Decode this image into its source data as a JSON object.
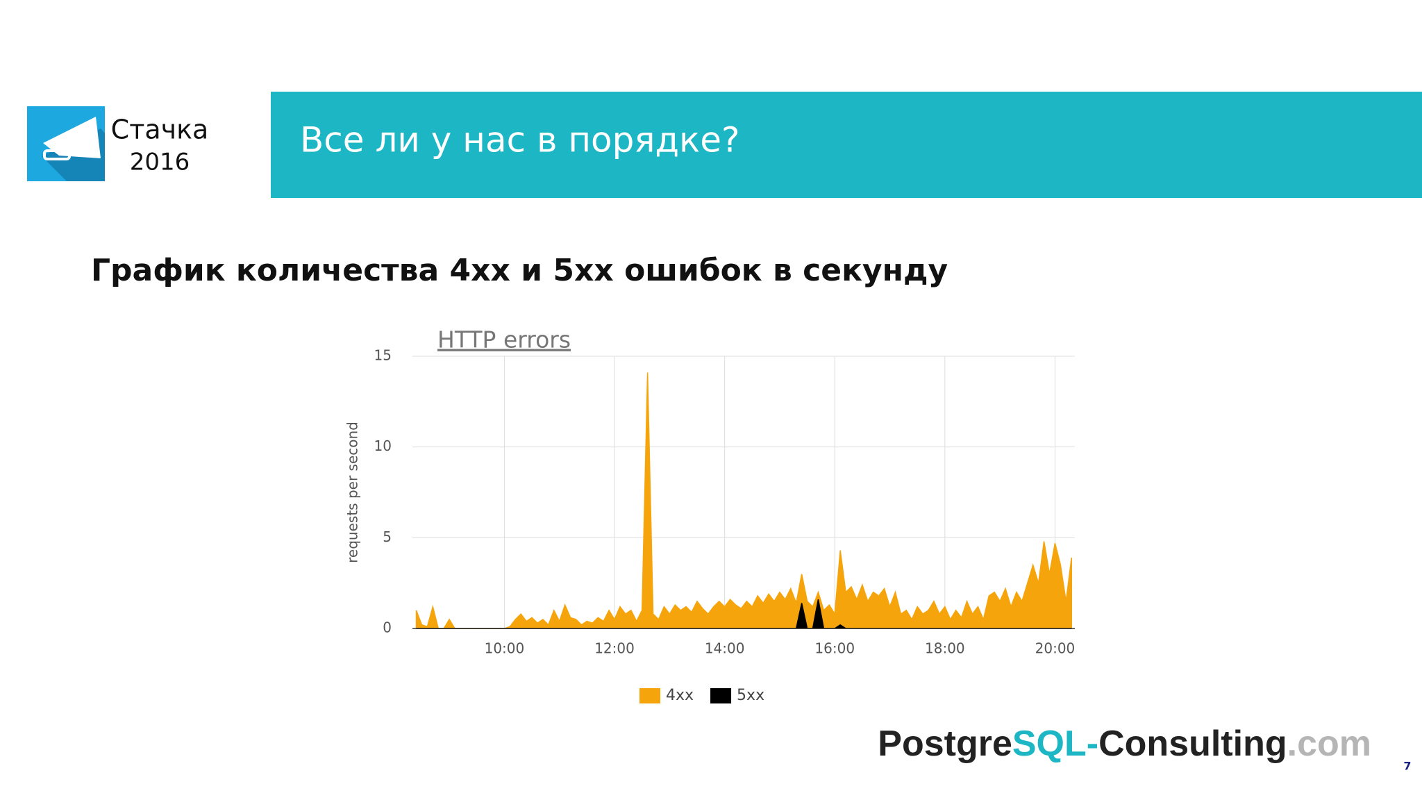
{
  "header": {
    "brand": "Стачка",
    "year": "2016",
    "title": "Все ли у нас в порядке?"
  },
  "subtitle": "График количества 4xx и 5xx ошибок в секунду",
  "chart_data": {
    "type": "area",
    "title": "HTTP errors",
    "y_label": "requests per second",
    "x": [
      8.4,
      8.5,
      8.6,
      8.7,
      8.8,
      8.9,
      9.0,
      9.1,
      9.2,
      9.3,
      9.4,
      9.5,
      9.6,
      9.7,
      9.8,
      9.9,
      10.0,
      10.1,
      10.2,
      10.3,
      10.4,
      10.5,
      10.6,
      10.7,
      10.8,
      10.9,
      11.0,
      11.1,
      11.2,
      11.3,
      11.4,
      11.5,
      11.6,
      11.7,
      11.8,
      11.9,
      12.0,
      12.1,
      12.2,
      12.3,
      12.4,
      12.5,
      12.6,
      12.7,
      12.8,
      12.9,
      13.0,
      13.1,
      13.2,
      13.3,
      13.4,
      13.5,
      13.6,
      13.7,
      13.8,
      13.9,
      14.0,
      14.1,
      14.2,
      14.3,
      14.4,
      14.5,
      14.6,
      14.7,
      14.8,
      14.9,
      15.0,
      15.1,
      15.2,
      15.3,
      15.4,
      15.5,
      15.6,
      15.7,
      15.8,
      15.9,
      16.0,
      16.1,
      16.2,
      16.3,
      16.4,
      16.5,
      16.6,
      16.7,
      16.8,
      16.9,
      17.0,
      17.1,
      17.2,
      17.3,
      17.4,
      17.5,
      17.6,
      17.7,
      17.8,
      17.9,
      18.0,
      18.1,
      18.2,
      18.3,
      18.4,
      18.5,
      18.6,
      18.7,
      18.8,
      18.9,
      19.0,
      19.1,
      19.2,
      19.3,
      19.4,
      19.5,
      19.6,
      19.7,
      19.8,
      19.9,
      20.0,
      20.1,
      20.2,
      20.3
    ],
    "series": [
      {
        "name": "4xx",
        "color": "#f5a40c",
        "values": [
          1.0,
          0.2,
          0.1,
          1.2,
          0,
          0,
          0.5,
          0,
          0,
          0,
          0,
          0,
          0,
          0,
          0,
          0,
          0,
          0.1,
          0.5,
          0.8,
          0.4,
          0.6,
          0.3,
          0.5,
          0.2,
          1.0,
          0.4,
          1.3,
          0.6,
          0.5,
          0.2,
          0.4,
          0.3,
          0.6,
          0.4,
          1.0,
          0.5,
          1.2,
          0.8,
          1.0,
          0.4,
          1.0,
          14.1,
          0.8,
          0.5,
          1.2,
          0.8,
          1.3,
          1.0,
          1.2,
          0.9,
          1.5,
          1.1,
          0.8,
          1.2,
          1.5,
          1.2,
          1.6,
          1.3,
          1.1,
          1.5,
          1.2,
          1.8,
          1.4,
          1.9,
          1.5,
          2.0,
          1.6,
          2.2,
          1.4,
          3.0,
          1.5,
          1.2,
          2.0,
          1.0,
          1.3,
          0.8,
          4.3,
          2.0,
          2.3,
          1.6,
          2.4,
          1.5,
          2.0,
          1.8,
          2.2,
          1.2,
          2.0,
          0.8,
          1.0,
          0.5,
          1.2,
          0.8,
          1.0,
          1.5,
          0.8,
          1.2,
          0.5,
          1.0,
          0.6,
          1.5,
          0.8,
          1.2,
          0.5,
          1.8,
          2.0,
          1.5,
          2.2,
          1.2,
          2.0,
          1.5,
          2.5,
          3.5,
          2.5,
          4.8,
          3.0,
          4.7,
          3.5,
          1.5,
          3.9
        ]
      },
      {
        "name": "5xx",
        "color": "#000000",
        "values": [
          0,
          0,
          0,
          0,
          0,
          0,
          0,
          0,
          0,
          0,
          0,
          0,
          0,
          0,
          0,
          0,
          0,
          0,
          0,
          0,
          0,
          0,
          0,
          0,
          0,
          0,
          0,
          0,
          0,
          0,
          0,
          0,
          0,
          0,
          0,
          0,
          0,
          0,
          0,
          0,
          0,
          0,
          0,
          0,
          0,
          0,
          0,
          0,
          0,
          0,
          0,
          0,
          0,
          0,
          0,
          0,
          0,
          0,
          0,
          0,
          0,
          0,
          0,
          0,
          0,
          0,
          0,
          0,
          0,
          0,
          1.4,
          0,
          0,
          1.6,
          0,
          0,
          0,
          0.2,
          0,
          0,
          0,
          0,
          0,
          0,
          0,
          0,
          0,
          0,
          0,
          0,
          0,
          0,
          0,
          0,
          0,
          0,
          0,
          0,
          0,
          0,
          0,
          0,
          0,
          0,
          0,
          0,
          0,
          0,
          0,
          0,
          0,
          0,
          0,
          0,
          0,
          0,
          0,
          0,
          0,
          0
        ]
      }
    ],
    "xlim": [
      8.33,
      20.36
    ],
    "ylim": [
      0,
      15
    ],
    "xticks": [
      {
        "value": 10,
        "label": "10:00"
      },
      {
        "value": 12,
        "label": "12:00"
      },
      {
        "value": 14,
        "label": "14:00"
      },
      {
        "value": 16,
        "label": "16:00"
      },
      {
        "value": 18,
        "label": "18:00"
      },
      {
        "value": 20,
        "label": "20:00"
      }
    ],
    "yticks": [
      0,
      5,
      10,
      15
    ],
    "grid": true,
    "legend": "bottom"
  },
  "footer": {
    "parts": [
      {
        "text": "Postgre",
        "color": "#222222"
      },
      {
        "text": "SQL",
        "color": "#1db6c4"
      },
      {
        "text": "-",
        "color": "#1db6c4"
      },
      {
        "text": "Consulting",
        "color": "#222222"
      },
      {
        "text": ".com",
        "color": "#b5b5b5"
      }
    ]
  },
  "page_number": "7"
}
